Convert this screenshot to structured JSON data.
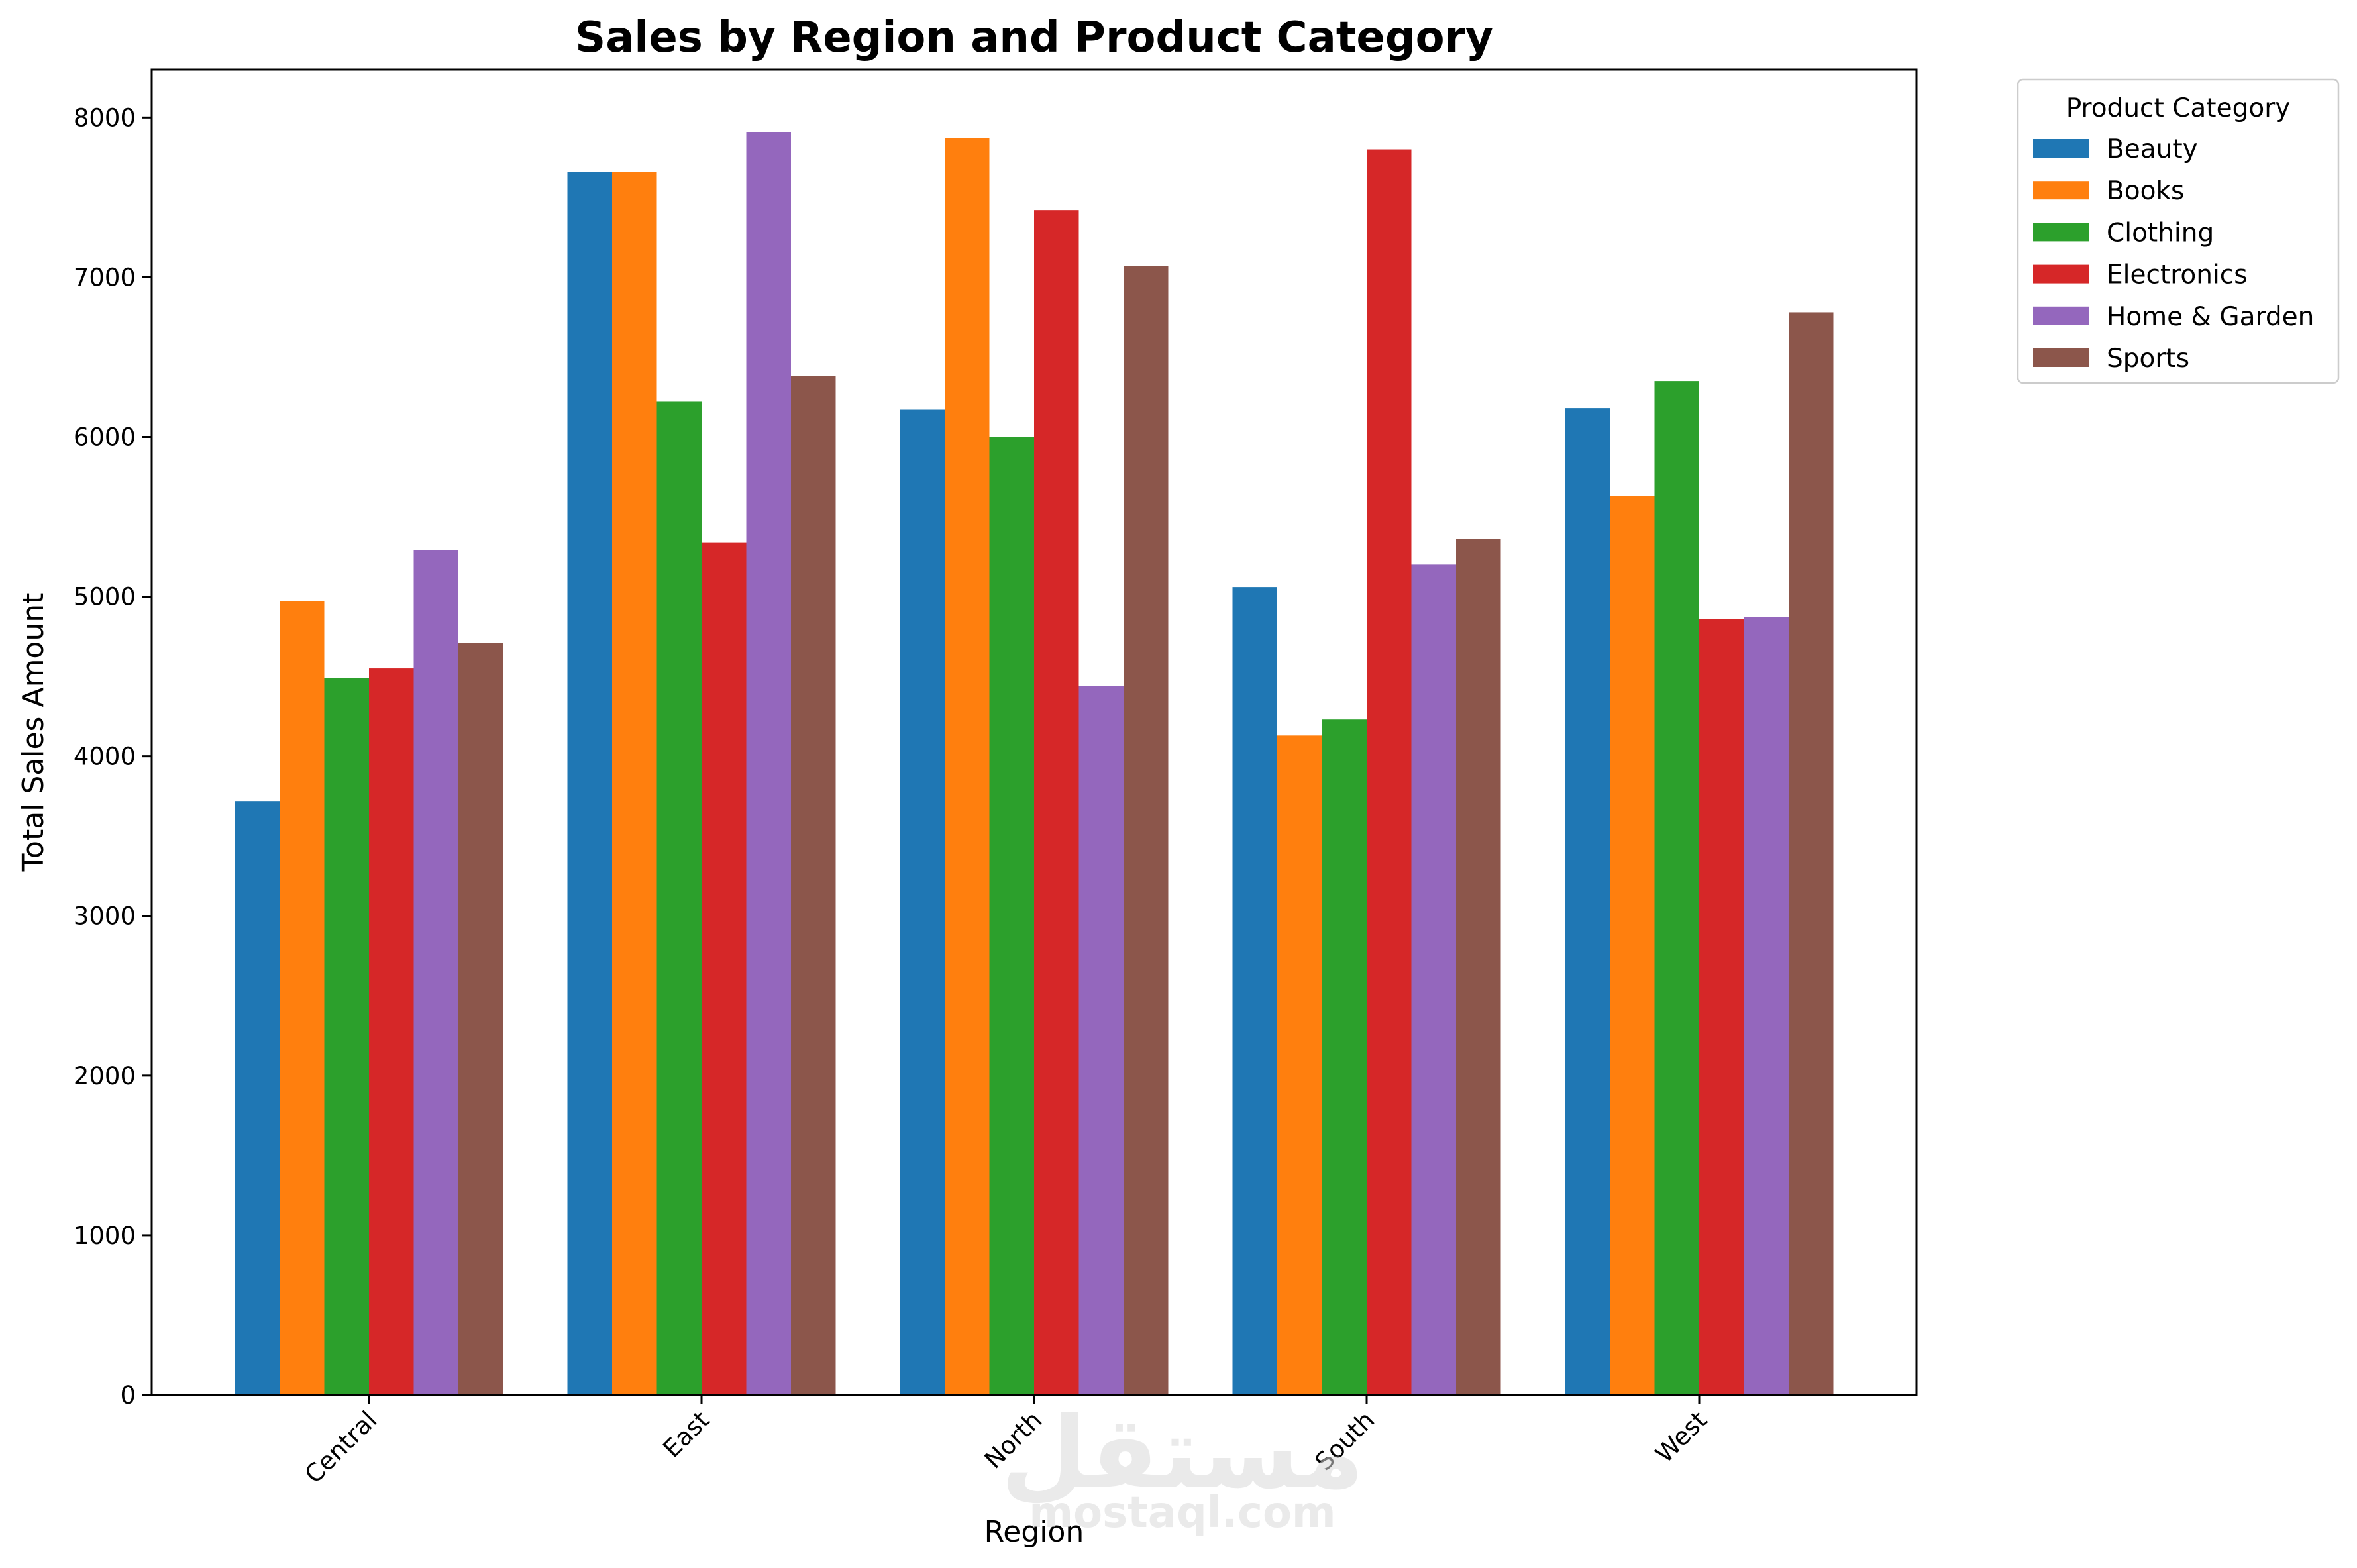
{
  "chart_data": {
    "type": "bar",
    "title": "Sales by Region and Product Category",
    "xlabel": "Region",
    "ylabel": "Total Sales Amount",
    "categories": [
      "Central",
      "East",
      "North",
      "South",
      "West"
    ],
    "series": [
      {
        "name": "Beauty",
        "color": "#1f77b4",
        "values": [
          3720,
          7660,
          6170,
          5060,
          6180
        ]
      },
      {
        "name": "Books",
        "color": "#ff7f0e",
        "values": [
          4970,
          7660,
          7870,
          4130,
          5630
        ]
      },
      {
        "name": "Clothing",
        "color": "#2ca02c",
        "values": [
          4490,
          6220,
          6000,
          4230,
          6350
        ]
      },
      {
        "name": "Electronics",
        "color": "#d62728",
        "values": [
          4550,
          5340,
          7420,
          7800,
          4860
        ]
      },
      {
        "name": "Home & Garden",
        "color": "#9467bd",
        "values": [
          5290,
          7910,
          4440,
          5200,
          4870
        ]
      },
      {
        "name": "Sports",
        "color": "#8c564b",
        "values": [
          4710,
          6380,
          7070,
          5360,
          6780
        ]
      }
    ],
    "ylim": [
      0,
      8300
    ],
    "yticks": [
      0,
      1000,
      2000,
      3000,
      4000,
      5000,
      6000,
      7000,
      8000
    ],
    "xtick_rotation": 45,
    "grid": false,
    "legend": {
      "title": "Product Category",
      "placement": "outside-top-right"
    }
  },
  "watermark": {
    "arabic": "مستقل",
    "latin": "mostaql.com"
  }
}
